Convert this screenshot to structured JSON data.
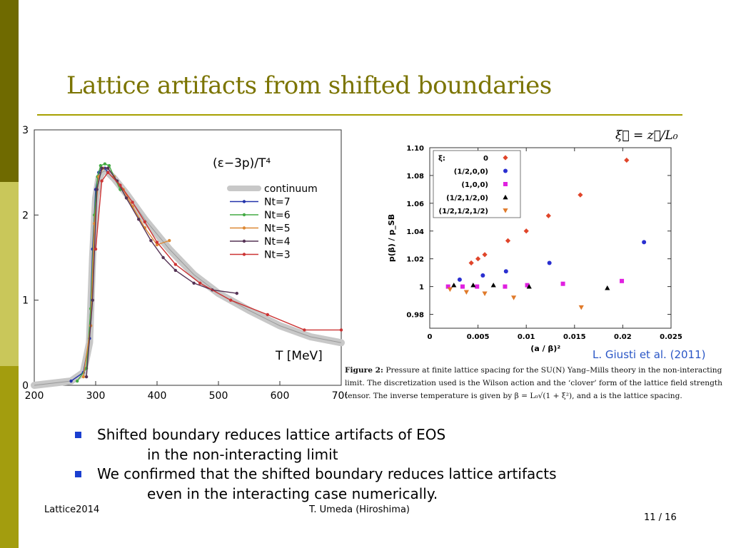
{
  "slide": {
    "title": "Lattice artifacts from shifted boundaries",
    "bullets": [
      {
        "line1": "Shifted boundary reduces lattice artifacts of EOS",
        "line2": "in the non-interacting limit"
      },
      {
        "line1": "We confirmed that the shifted boundary reduces  lattice artifacts",
        "line2": "even in the interacting case numerically."
      }
    ],
    "footer_left": "Lattice2014",
    "footer_center": "T. Umeda (Hiroshima)",
    "page_number": "11 / 16",
    "citation": "L. Giusti et al. (2011)",
    "formula": "ξ⃗ = z⃗/L₀",
    "caption_label": "Figure 2:",
    "caption_text": "Pressure at finite lattice spacing for the SU(N) Yang–Mills theory in the non-interacting limit. The discretization used is the Wilson action and the ‘clover’ form of the lattice field strength tensor. The inverse temperature is given by β = L₀√(1 + ξ²), and a is the lattice spacing.",
    "colors": {
      "sidebar_dark": "#6f6a00",
      "sidebar_light": "#c9c75a",
      "sidebar_mid": "#a39d0e",
      "title": "#7b7400",
      "bullet": "#1a3fd0",
      "citation": "#2a56c6"
    }
  },
  "chart_data": [
    {
      "type": "line",
      "title": "(ε−3p)/T⁴",
      "xlabel": "T [MeV]",
      "ylabel": "",
      "xlim": [
        200,
        700
      ],
      "ylim": [
        0,
        3
      ],
      "xticks": [
        200,
        300,
        400,
        500,
        600,
        700
      ],
      "yticks": [
        0,
        1,
        2,
        3
      ],
      "legend_position": "right-middle",
      "series": [
        {
          "name": "continuum",
          "color": "#c8c8c8",
          "x": [
            200,
            260,
            280,
            290,
            295,
            300,
            305,
            310,
            315,
            320,
            330,
            350,
            380,
            420,
            460,
            500,
            550,
            600,
            650,
            700
          ],
          "y": [
            0.0,
            0.05,
            0.15,
            0.5,
            1.5,
            2.2,
            2.42,
            2.5,
            2.52,
            2.5,
            2.43,
            2.25,
            1.95,
            1.6,
            1.3,
            1.08,
            0.88,
            0.7,
            0.57,
            0.5
          ]
        },
        {
          "name": "Nt=7",
          "color": "#2233aa",
          "x": [
            260,
            280,
            290,
            295,
            300,
            305,
            310,
            315,
            320
          ],
          "y": [
            0.05,
            0.15,
            0.55,
            1.6,
            2.3,
            2.5,
            2.55,
            2.55,
            2.5
          ]
        },
        {
          "name": "Nt=6",
          "color": "#44aa44",
          "x": [
            270,
            285,
            292,
            298,
            303,
            308,
            315,
            322,
            330,
            340
          ],
          "y": [
            0.05,
            0.2,
            0.9,
            2.0,
            2.45,
            2.58,
            2.6,
            2.58,
            2.45,
            2.3
          ]
        },
        {
          "name": "Nt=5",
          "color": "#dd8833",
          "x": [
            280,
            292,
            298,
            305,
            312,
            320,
            330,
            345,
            360,
            380,
            400,
            420
          ],
          "y": [
            0.1,
            0.7,
            1.9,
            2.45,
            2.55,
            2.55,
            2.45,
            2.3,
            2.1,
            1.85,
            1.65,
            1.7
          ]
        },
        {
          "name": "Nt=4",
          "color": "#553355",
          "x": [
            285,
            295,
            302,
            310,
            320,
            335,
            350,
            370,
            390,
            410,
            430,
            460,
            490,
            530
          ],
          "y": [
            0.1,
            1.0,
            2.3,
            2.55,
            2.55,
            2.4,
            2.2,
            1.95,
            1.7,
            1.5,
            1.35,
            1.2,
            1.12,
            1.08
          ]
        },
        {
          "name": "Nt=3",
          "color": "#cc3333",
          "x": [
            300,
            310,
            320,
            340,
            360,
            380,
            400,
            430,
            470,
            520,
            580,
            640,
            700
          ],
          "y": [
            1.6,
            2.4,
            2.5,
            2.35,
            2.15,
            1.92,
            1.68,
            1.42,
            1.2,
            1.0,
            0.83,
            0.65,
            0.65
          ]
        }
      ]
    },
    {
      "type": "scatter",
      "title": "",
      "xlabel": "(a / β)²",
      "ylabel": "p(β) / p_SB",
      "xlim": [
        0,
        0.025
      ],
      "ylim": [
        0.97,
        1.1
      ],
      "xticks": [
        0,
        0.005,
        0.01,
        0.015,
        0.02,
        0.025
      ],
      "yticks": [
        0.98,
        1,
        1.02,
        1.04,
        1.06,
        1.08,
        1.1
      ],
      "legend_header": "ξ:",
      "legend_position": "top-left",
      "series": [
        {
          "name": "0",
          "marker": "diamond",
          "color": "#e0452a",
          "x": [
            0.0043,
            0.005,
            0.0057,
            0.0081,
            0.01,
            0.0123,
            0.0156,
            0.0204
          ],
          "y": [
            1.017,
            1.02,
            1.023,
            1.033,
            1.04,
            1.051,
            1.066,
            1.091
          ]
        },
        {
          "name": "(1/2,0,0)",
          "marker": "circle",
          "color": "#2a2fd0",
          "x": [
            0.0031,
            0.0055,
            0.0079,
            0.0124,
            0.0222
          ],
          "y": [
            1.005,
            1.008,
            1.011,
            1.017,
            1.032
          ]
        },
        {
          "name": "(1,0,0)",
          "marker": "square",
          "color": "#e020e0",
          "x": [
            0.0019,
            0.0034,
            0.0049,
            0.0078,
            0.0101,
            0.0138,
            0.0199
          ],
          "y": [
            1.0,
            1.0,
            1.0,
            1.0,
            1.001,
            1.002,
            1.004
          ]
        },
        {
          "name": "(1/2,1/2,0)",
          "marker": "triangle-up",
          "color": "#000000",
          "x": [
            0.0025,
            0.0045,
            0.0066,
            0.0103,
            0.0184
          ],
          "y": [
            1.001,
            1.001,
            1.001,
            1.0,
            0.999
          ]
        },
        {
          "name": "(1/2,1/2,1/2)",
          "marker": "triangle-down",
          "color": "#e07a2a",
          "x": [
            0.0021,
            0.0038,
            0.0057,
            0.0087,
            0.0157
          ],
          "y": [
            0.998,
            0.996,
            0.995,
            0.992,
            0.985
          ]
        }
      ]
    }
  ]
}
